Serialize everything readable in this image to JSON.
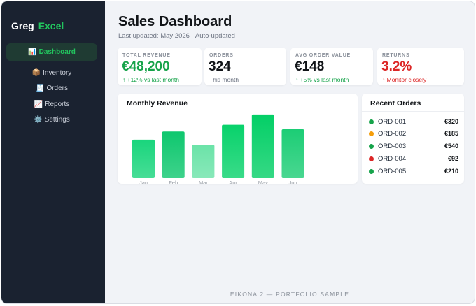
{
  "brand": {
    "name": "Greg",
    "accent": "Excel"
  },
  "sidebar": {
    "items": [
      {
        "icon": "📊",
        "icon_name": "bar-chart-icon",
        "label": "Dashboard",
        "active": true
      },
      {
        "icon": "📦",
        "icon_name": "package-icon",
        "label": "Inventory",
        "active": false
      },
      {
        "icon": "🧾",
        "icon_name": "receipt-icon",
        "label": "Orders",
        "active": false
      },
      {
        "icon": "📈",
        "icon_name": "trend-chart-icon",
        "label": "Reports",
        "active": false
      },
      {
        "icon": "⚙️",
        "icon_name": "gear-icon",
        "label": "Settings",
        "active": false
      }
    ]
  },
  "header": {
    "title": "Sales Dashboard",
    "subtitle": "Last updated: May 2026 · Auto-updated"
  },
  "kpis": [
    {
      "label": "TOTAL REVENUE",
      "value": "€48,200",
      "sub": "↑ +12% vs last month",
      "value_color": "#16a34a",
      "sub_color": "#16a34a"
    },
    {
      "label": "ORDERS",
      "value": "324",
      "sub": "This month",
      "value_color": "#111418",
      "sub_color": "#6b7280"
    },
    {
      "label": "AVG ORDER VALUE",
      "value": "€148",
      "sub": "↑ +5% vs last month",
      "value_color": "#111418",
      "sub_color": "#16a34a"
    },
    {
      "label": "RETURNS",
      "value": "3.2%",
      "sub": "↑ Monitor closely",
      "value_color": "#dc2626",
      "sub_color": "#dc2626"
    }
  ],
  "chart_data": {
    "type": "bar",
    "title": "Monthly Revenue",
    "categories": [
      "Jan",
      "Feb",
      "Mar",
      "Apr",
      "May",
      "Jun"
    ],
    "values": [
      52,
      63,
      45,
      72,
      86,
      66
    ],
    "ylim": [
      0,
      100
    ],
    "grid": false,
    "colors": [
      "#19d57c",
      "#0ec76e",
      "#6be3a8",
      "#08d26b",
      "#03cf66",
      "#1ccd75"
    ]
  },
  "recent_orders": {
    "title": "Recent Orders",
    "items": [
      {
        "id": "ORD-001",
        "amount": "€320",
        "status_color": "#16a34a"
      },
      {
        "id": "ORD-002",
        "amount": "€185",
        "status_color": "#f59e0b"
      },
      {
        "id": "ORD-003",
        "amount": "€540",
        "status_color": "#16a34a"
      },
      {
        "id": "ORD-004",
        "amount": "€92",
        "status_color": "#dc2626"
      },
      {
        "id": "ORD-005",
        "amount": "€210",
        "status_color": "#16a34a"
      }
    ]
  },
  "footer": {
    "text": "EIKONA 2 — PORTFOLIO SAMPLE"
  },
  "theme": {
    "accent": "#22c55e",
    "sidebar_bg": "#1a2230",
    "page_bg": "#f1f3f7"
  }
}
